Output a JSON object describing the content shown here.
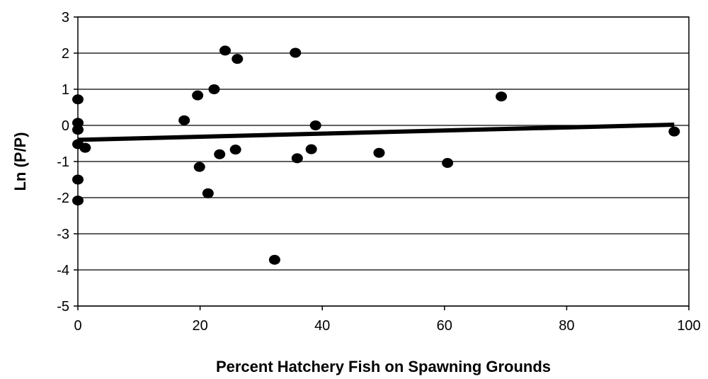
{
  "chart_data": {
    "type": "scatter",
    "title": "",
    "xlabel": "Percent Hatchery Fish on Spawning Grounds",
    "ylabel": "Ln (P/P)",
    "xlim": [
      0,
      100
    ],
    "ylim": [
      -5,
      3
    ],
    "xticks": [
      0,
      20,
      40,
      60,
      80,
      100
    ],
    "yticks": [
      -5,
      -4,
      -3,
      -2,
      -1,
      0,
      1,
      2,
      3
    ],
    "grid": "horizontal",
    "legend": "none",
    "marker_color": "#000000",
    "series": [
      {
        "points": [
          {
            "x": 0,
            "y": 0.72
          },
          {
            "x": 0,
            "y": 0.07
          },
          {
            "x": 0,
            "y": -0.12
          },
          {
            "x": 0,
            "y": -0.52
          },
          {
            "x": 0,
            "y": -1.5
          },
          {
            "x": 0,
            "y": -2.08
          },
          {
            "x": 1.2,
            "y": -0.62
          },
          {
            "x": 17.4,
            "y": 0.14
          },
          {
            "x": 19.6,
            "y": 0.83
          },
          {
            "x": 19.9,
            "y": -1.15
          },
          {
            "x": 21.3,
            "y": -1.88
          },
          {
            "x": 22.3,
            "y": 1.0
          },
          {
            "x": 23.2,
            "y": -0.8
          },
          {
            "x": 24.1,
            "y": 2.07
          },
          {
            "x": 25.8,
            "y": -0.67
          },
          {
            "x": 26.1,
            "y": 1.84
          },
          {
            "x": 32.2,
            "y": -3.72
          },
          {
            "x": 35.6,
            "y": 2.01
          },
          {
            "x": 35.9,
            "y": -0.91
          },
          {
            "x": 38.2,
            "y": -0.66
          },
          {
            "x": 38.9,
            "y": 0.0
          },
          {
            "x": 49.3,
            "y": -0.76
          },
          {
            "x": 60.5,
            "y": -1.04
          },
          {
            "x": 69.3,
            "y": 0.8
          },
          {
            "x": 97.6,
            "y": -0.17
          }
        ]
      }
    ],
    "trendline": {
      "type": "linear",
      "x": [
        0,
        97.6
      ],
      "y": [
        -0.4,
        0.02
      ],
      "color": "#000000"
    }
  }
}
